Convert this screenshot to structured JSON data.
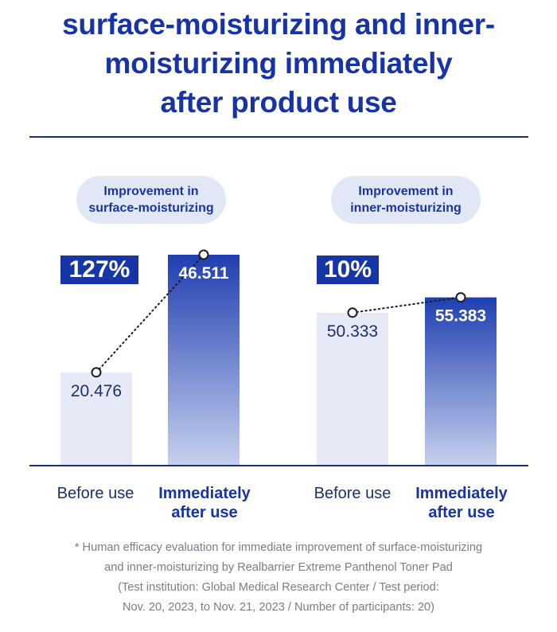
{
  "title_lines": [
    "surface-moisturizing and inner-",
    "moisturizing immediately",
    "after product use"
  ],
  "panels": [
    {
      "pill_line1": "Improvement in",
      "pill_line2": "surface-moisturizing",
      "percent": "127%"
    },
    {
      "pill_line1": "Improvement in",
      "pill_line2": "inner-moisturizing",
      "percent": "10%"
    }
  ],
  "chart_data": [
    {
      "type": "bar",
      "categories": [
        "Before use",
        "Immediately after use"
      ],
      "values": [
        20.476,
        46.511
      ],
      "value_labels": [
        "20.476",
        "46.511"
      ],
      "annotation": "127%",
      "ylim": [
        0,
        46.511
      ]
    },
    {
      "type": "bar",
      "categories": [
        "Before use",
        "Immediately after use"
      ],
      "values": [
        50.333,
        55.383
      ],
      "value_labels": [
        "50.333",
        "55.383"
      ],
      "annotation": "10%",
      "ylim": [
        0,
        69.5
      ]
    }
  ],
  "xlabels": {
    "before": "Before use",
    "after_line1": "Immediately",
    "after_line2": "after use"
  },
  "footnote": [
    "* Human efficacy evaluation for immediate improvement of surface-moisturizing",
    "and inner-moisturizing by Realbarrier Extreme Panthenol Toner Pad",
    "(Test institution: Global Medical Research Center / Test period:",
    "Nov. 20, 2023, to Nov. 21, 2023 / Number of participants: 20)"
  ],
  "colors": {
    "accent": "#1733a6",
    "bar_before": "#e6eaf6",
    "bar_after_top": "#1f3fb0",
    "bar_after_bottom": "#c6d0ee",
    "axis": "#1c2f6e"
  }
}
